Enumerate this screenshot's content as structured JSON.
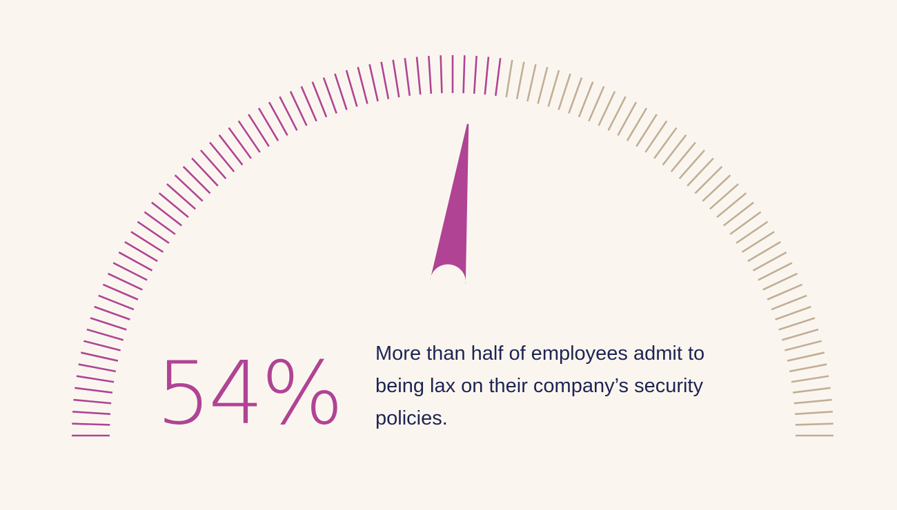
{
  "stat": {
    "value_label": "54%",
    "caption": "More than half of employees admit to being lax on their company’s security policies."
  },
  "chart_data": {
    "type": "gauge",
    "value": 54,
    "min": 0,
    "max": 100,
    "tick_count": 101,
    "filled_color": "#b04394",
    "unfilled_color": "#c2ae95",
    "needle_color": "#b04394",
    "title": "",
    "xlabel": "",
    "ylabel": ""
  }
}
